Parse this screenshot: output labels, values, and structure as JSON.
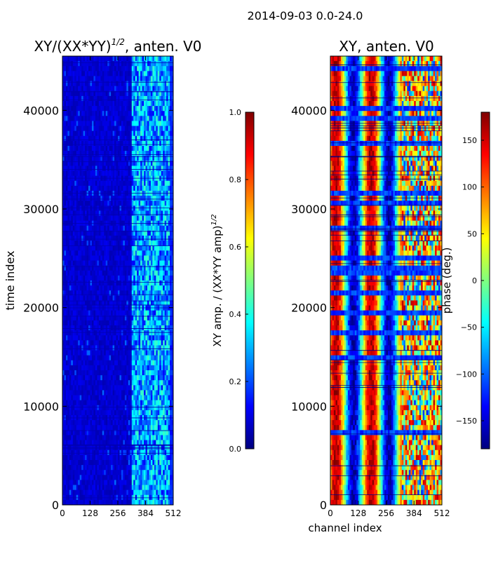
{
  "figure": {
    "suptitle": "2014-09-03 0.0-24.0"
  },
  "chart_data": [
    {
      "type": "heatmap",
      "title": "XY/(XX*YY)",
      "title_superscript": "1/2",
      "title_suffix": ", anten. V0",
      "xlabel": "",
      "ylabel": "time index",
      "xlim": [
        0,
        512
      ],
      "ylim": [
        0,
        45500
      ],
      "xticks": [
        0,
        128,
        256,
        384,
        512
      ],
      "yticks": [
        0,
        10000,
        20000,
        30000,
        40000
      ],
      "colormap": "jet",
      "colorbar": {
        "label": "XY amp. / (XX*YY amp)",
        "label_superscript": "1/2",
        "range": [
          0.0,
          1.0
        ],
        "ticks": [
          "0.0",
          "0.2",
          "0.4",
          "0.6",
          "0.8",
          "1.0"
        ]
      },
      "description_values": {
        "channels_0_to_320_level": 0.05,
        "channels_320_to_500_level": 0.35
      }
    },
    {
      "type": "heatmap",
      "title": "XY, anten. V0",
      "xlabel": "channel index",
      "ylabel": "",
      "xlim": [
        0,
        512
      ],
      "ylim": [
        0,
        45500
      ],
      "xticks": [
        0,
        128,
        256,
        384,
        512
      ],
      "yticks": [
        0,
        10000,
        20000,
        30000,
        40000
      ],
      "colormap": "jet",
      "colorbar": {
        "label": "phase (deg.)",
        "range": [
          -180,
          180
        ],
        "ticks": [
          "150",
          "100",
          "50",
          "0",
          "−50",
          "−100",
          "−150"
        ],
        "tick_values": [
          150,
          100,
          50,
          0,
          -50,
          -100,
          -150
        ]
      }
    }
  ],
  "colors": {
    "jet_dark_blue": "#00007f",
    "jet_blue": "#0000ff",
    "jet_cyan": "#00ffff",
    "jet_yellow": "#ffff00",
    "jet_red": "#ff0000",
    "jet_dark_red": "#7f0000"
  }
}
